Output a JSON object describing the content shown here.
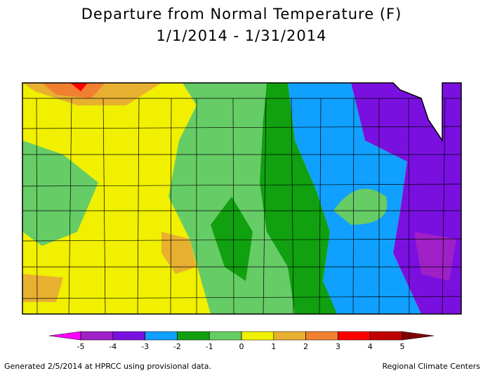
{
  "header": {
    "title": "Departure from Normal Temperature (F)",
    "subtitle": "1/1/2014 - 1/31/2014"
  },
  "legend": {
    "ticks": [
      -5,
      -4,
      -3,
      -2,
      -1,
      0,
      1,
      2,
      3,
      4,
      5
    ],
    "below_color": "#ff00ff",
    "colors": [
      "#a020c8",
      "#7a10e0",
      "#10a0ff",
      "#10a010",
      "#66cc66",
      "#f0f000",
      "#e8b030",
      "#f08030",
      "#ff0000",
      "#c00000"
    ],
    "above_color": "#800000"
  },
  "footer": {
    "left": "Generated 2/5/2014 at HPRCC using provisional data.",
    "right": "Regional Climate Centers"
  }
}
